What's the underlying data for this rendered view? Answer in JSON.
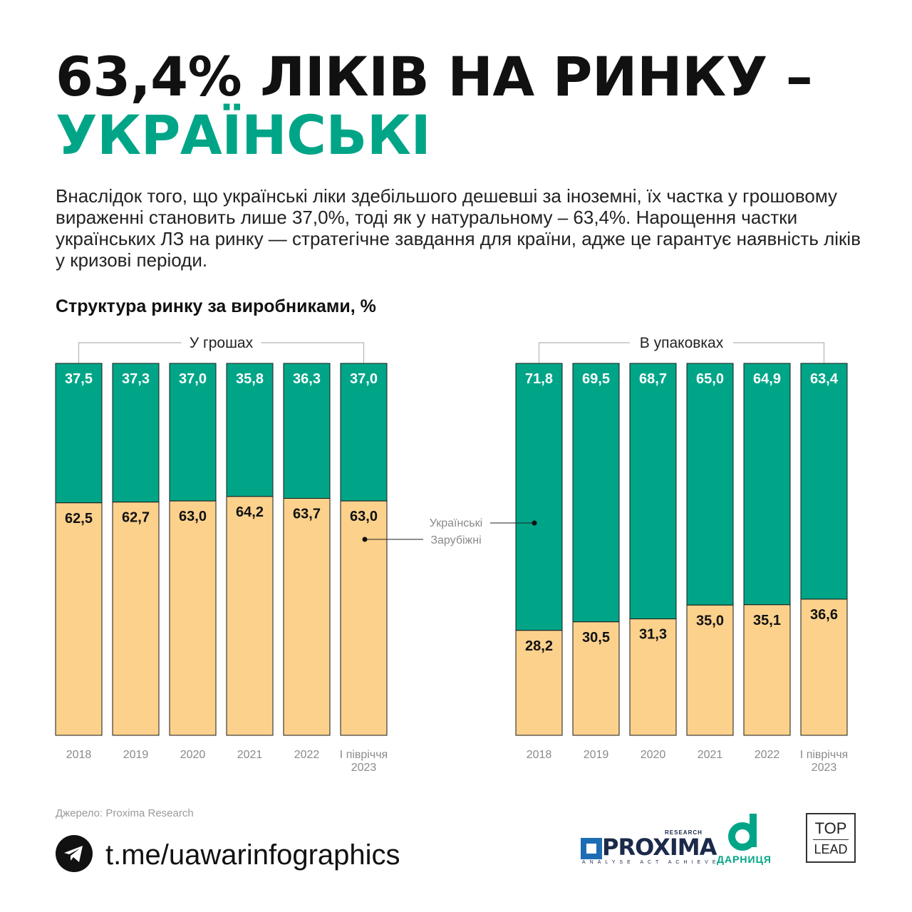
{
  "title": {
    "line1": "63,4% ЛІКІВ НА РИНКУ –",
    "line2": "УКРАЇНСЬКІ"
  },
  "intro": "Внаслідок того, що українські ліки здебільшого дешевші за іноземні, їх частка у грошовому вираженні становить лише 37,0%, тоді як у натуральному – 63,4%. Нарощення частки українських ЛЗ на ринку — стратегічне завдання для країни, адже це гарантує наявність ліків у кризові періоди.",
  "chart_heading": "Структура ринку за виробниками, %",
  "legend": {
    "ukrainian": "Українські",
    "foreign": "Зарубіжні"
  },
  "colors": {
    "ukrainian": "#00a587",
    "foreign": "#fbd18c",
    "accent": "#00a587"
  },
  "chart_data": [
    {
      "type": "bar",
      "stacked": true,
      "title": "У грошах",
      "categories": [
        "2018",
        "2019",
        "2020",
        "2021",
        "2022",
        "І півріччя 2023"
      ],
      "series": [
        {
          "name": "Українські",
          "values": [
            37.5,
            37.3,
            37.0,
            35.8,
            36.3,
            37.0
          ],
          "labels": [
            "37,5",
            "37,3",
            "37,0",
            "35,8",
            "36,3",
            "37,0"
          ]
        },
        {
          "name": "Зарубіжні",
          "values": [
            62.5,
            62.7,
            63.0,
            64.2,
            63.7,
            63.0
          ],
          "labels": [
            "62,5",
            "62,7",
            "63,0",
            "64,2",
            "63,7",
            "63,0"
          ]
        }
      ],
      "ylim": [
        0,
        100
      ]
    },
    {
      "type": "bar",
      "stacked": true,
      "title": "В упаковках",
      "categories": [
        "2018",
        "2019",
        "2020",
        "2021",
        "2022",
        "І півріччя 2023"
      ],
      "series": [
        {
          "name": "Українські",
          "values": [
            71.8,
            69.5,
            68.7,
            65.0,
            64.9,
            63.4
          ],
          "labels": [
            "71,8",
            "69,5",
            "68,7",
            "65,0",
            "64,9",
            "63,4"
          ]
        },
        {
          "name": "Зарубіжні",
          "values": [
            28.2,
            30.5,
            31.3,
            35.0,
            35.1,
            36.6
          ],
          "labels": [
            "28,2",
            "30,5",
            "31,3",
            "35,0",
            "35,1",
            "36,6"
          ]
        }
      ],
      "ylim": [
        0,
        100
      ]
    }
  ],
  "source": "Джерело: Proxima Research",
  "footer": {
    "link": "t.me/uawarinfographics",
    "telegram_icon": "telegram-icon",
    "logos": {
      "proxima": "PROXIMA",
      "proxima_research": "RESEARCH",
      "proxima_tagline": "ANALYSE ACT ACHIEVE",
      "darnitsa": "ДАРНИЦЯ",
      "toplead_top": "TOP",
      "toplead_bottom": "LEAD"
    }
  }
}
